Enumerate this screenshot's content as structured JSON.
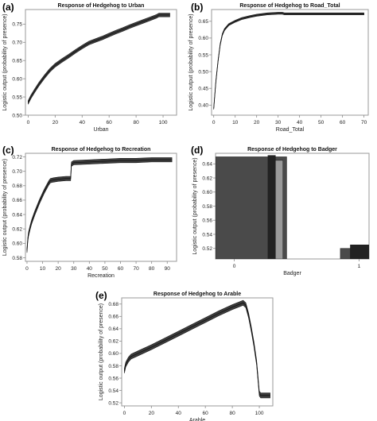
{
  "chart_data": [
    {
      "type": "line",
      "panel_label": "(a)",
      "title": "Response of Hedgehog to Urban",
      "xlabel": "Urban",
      "ylabel": "Logistic output (probability of presence)",
      "xlim": [
        -2,
        110
      ],
      "ylim": [
        0.5,
        0.79
      ],
      "xticks": [
        0,
        20,
        40,
        60,
        80,
        100
      ],
      "yticks": [
        0.5,
        0.55,
        0.6,
        0.65,
        0.7,
        0.75
      ],
      "band": 0.005,
      "series": [
        {
          "x": [
            0,
            2,
            5,
            8,
            12,
            16,
            20,
            25,
            30,
            35,
            40,
            45,
            50,
            55,
            60,
            65,
            70,
            75,
            80,
            85,
            90,
            95,
            97,
            105
          ],
          "y": [
            0.535,
            0.55,
            0.568,
            0.585,
            0.605,
            0.623,
            0.637,
            0.65,
            0.662,
            0.675,
            0.687,
            0.698,
            0.705,
            0.712,
            0.72,
            0.728,
            0.735,
            0.743,
            0.75,
            0.757,
            0.764,
            0.771,
            0.775,
            0.775
          ]
        }
      ]
    },
    {
      "type": "line",
      "panel_label": "(b)",
      "title": "Response of Hedgehog to Road_Total",
      "xlabel": "Road_Total",
      "ylabel": "Logistic output (probability of presence)",
      "xlim": [
        -1,
        72
      ],
      "ylim": [
        0.37,
        0.685
      ],
      "xticks": [
        0,
        10,
        20,
        30,
        40,
        50,
        60,
        70
      ],
      "yticks": [
        0.4,
        0.45,
        0.5,
        0.55,
        0.6,
        0.65
      ],
      "band": 0.003,
      "series": [
        {
          "x": [
            0,
            0.5,
            1,
            2,
            3,
            4,
            5,
            7,
            10,
            13,
            17,
            20,
            25,
            30,
            32,
            33,
            40,
            50,
            60,
            70
          ],
          "y": [
            0.39,
            0.43,
            0.47,
            0.53,
            0.58,
            0.61,
            0.625,
            0.64,
            0.65,
            0.658,
            0.664,
            0.668,
            0.672,
            0.674,
            0.674,
            0.672,
            0.672,
            0.672,
            0.672,
            0.672
          ]
        }
      ]
    },
    {
      "type": "line",
      "panel_label": "(c)",
      "title": "Response of Hedgehog to Recreation",
      "xlabel": "Recreation",
      "ylabel": "Logistic output (probability of presence)",
      "xlim": [
        -1,
        96
      ],
      "ylim": [
        0.575,
        0.725
      ],
      "xticks": [
        0,
        10,
        20,
        30,
        40,
        50,
        60,
        70,
        80,
        90
      ],
      "yticks": [
        0.58,
        0.6,
        0.62,
        0.64,
        0.66,
        0.68,
        0.7,
        0.72
      ],
      "band": 0.003,
      "series": [
        {
          "x": [
            0,
            0.5,
            1,
            2,
            3,
            5,
            8,
            11,
            14,
            15,
            17,
            20,
            25,
            28,
            28.5,
            30,
            40,
            50,
            60,
            70,
            80,
            90,
            93
          ],
          "y": [
            0.59,
            0.605,
            0.613,
            0.622,
            0.63,
            0.642,
            0.658,
            0.672,
            0.684,
            0.687,
            0.688,
            0.689,
            0.69,
            0.69,
            0.71,
            0.712,
            0.713,
            0.714,
            0.715,
            0.715,
            0.716,
            0.716,
            0.716
          ]
        }
      ]
    },
    {
      "type": "bar",
      "panel_label": "(d)",
      "title": "Response of Hedgehog to Badger",
      "xlabel": "Badger",
      "ylabel": "Logistic output (probability of presence)",
      "xlim": [
        -0.15,
        1.08
      ],
      "ylim": [
        0.505,
        0.655
      ],
      "xticks": [
        0,
        1
      ],
      "yticks": [
        0.52,
        0.54,
        0.56,
        0.58,
        0.6,
        0.62,
        0.64
      ],
      "bars": [
        {
          "x0": -0.15,
          "x1": 0.42,
          "value": 0.65,
          "color": "#4a4a4a"
        },
        {
          "x0": 0.27,
          "x1": 0.33,
          "value": 0.652,
          "color": "#222222"
        },
        {
          "x0": 0.33,
          "x1": 0.39,
          "value": 0.645,
          "color": "#9a9a9a"
        },
        {
          "x0": 0.85,
          "x1": 1.08,
          "value": 0.52,
          "color": "#4a4a4a"
        },
        {
          "x0": 0.93,
          "x1": 1.08,
          "value": 0.525,
          "color": "#222222"
        }
      ]
    },
    {
      "type": "line",
      "panel_label": "(e)",
      "title": "Response of Hedgehog to Arable",
      "xlabel": "Arable",
      "ylabel": "Logistic output (probability of presence)",
      "xlim": [
        -2,
        110
      ],
      "ylim": [
        0.515,
        0.69
      ],
      "xticks": [
        0,
        20,
        40,
        60,
        80,
        100
      ],
      "yticks": [
        0.52,
        0.54,
        0.56,
        0.58,
        0.6,
        0.62,
        0.64,
        0.66,
        0.68
      ],
      "band": 0.004,
      "series": [
        {
          "x": [
            0,
            1,
            3,
            5,
            10,
            20,
            30,
            40,
            50,
            60,
            70,
            80,
            88,
            90,
            92,
            94,
            96,
            98,
            99,
            100,
            101,
            102,
            105,
            108
          ],
          "y": [
            0.572,
            0.582,
            0.59,
            0.595,
            0.6,
            0.61,
            0.621,
            0.632,
            0.643,
            0.654,
            0.665,
            0.675,
            0.682,
            0.678,
            0.662,
            0.64,
            0.615,
            0.585,
            0.56,
            0.535,
            0.532,
            0.532,
            0.532,
            0.532
          ]
        }
      ]
    }
  ]
}
